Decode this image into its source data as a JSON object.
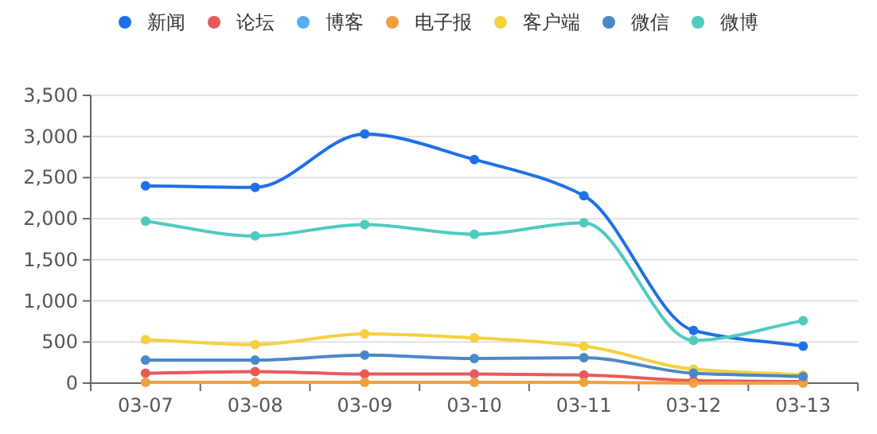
{
  "chart_data": {
    "type": "line",
    "categories": [
      "03-07",
      "03-08",
      "03-09",
      "03-10",
      "03-11",
      "03-12",
      "03-13"
    ],
    "series": [
      {
        "name": "新闻",
        "color": "#1e6fe8",
        "values": [
          2400,
          2380,
          3030,
          2720,
          2280,
          640,
          450
        ]
      },
      {
        "name": "论坛",
        "color": "#e85a5a",
        "values": [
          120,
          140,
          110,
          110,
          100,
          30,
          20
        ]
      },
      {
        "name": "博客",
        "color": "#5aaef0",
        "values": [
          null,
          null,
          null,
          null,
          null,
          null,
          null
        ]
      },
      {
        "name": "电子报",
        "color": "#f0a040",
        "values": [
          10,
          10,
          10,
          10,
          10,
          0,
          0
        ]
      },
      {
        "name": "客户端",
        "color": "#f5d040",
        "values": [
          530,
          470,
          600,
          550,
          450,
          170,
          100
        ]
      },
      {
        "name": "微信",
        "color": "#4a88c8",
        "values": [
          280,
          280,
          340,
          300,
          310,
          120,
          80
        ]
      },
      {
        "name": "微博",
        "color": "#4ecbbf",
        "values": [
          1970,
          1790,
          1930,
          1810,
          1950,
          520,
          760
        ]
      }
    ],
    "ylim": [
      0,
      3500
    ],
    "yticks": [
      {
        "value": 0,
        "label": "0"
      },
      {
        "value": 500,
        "label": "500"
      },
      {
        "value": 1000,
        "label": "1,000"
      },
      {
        "value": 1500,
        "label": "1,500"
      },
      {
        "value": 2000,
        "label": "2,000"
      },
      {
        "value": 2500,
        "label": "2,500"
      },
      {
        "value": 3000,
        "label": "3,000"
      },
      {
        "value": 3500,
        "label": "3,500"
      }
    ],
    "grid": "y",
    "legend": "top",
    "marker": "circle",
    "line_style": "solid"
  }
}
